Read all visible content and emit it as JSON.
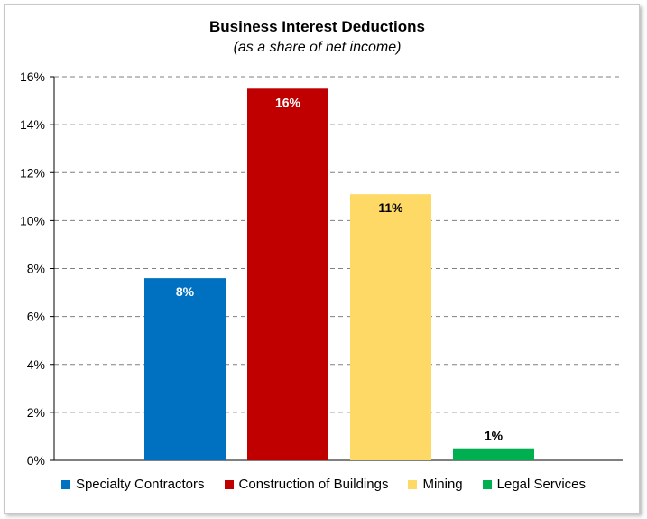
{
  "chart_data": {
    "type": "bar",
    "title": "Business Interest Deductions",
    "subtitle": "(as a share of net income)",
    "xlabel": "",
    "ylabel": "",
    "ylim": [
      0,
      16
    ],
    "yticks": [
      0,
      2,
      4,
      6,
      8,
      10,
      12,
      14,
      16
    ],
    "ytick_labels": [
      "0%",
      "2%",
      "4%",
      "6%",
      "8%",
      "10%",
      "12%",
      "14%",
      "16%"
    ],
    "grid": true,
    "legend_position": "bottom",
    "categories": [
      "Specialty Contractors",
      "Construction of Buildings",
      "Mining",
      "Legal Services"
    ],
    "values": [
      7.6,
      15.5,
      11.1,
      0.5
    ],
    "data_labels": [
      "8%",
      "16%",
      "11%",
      "1%"
    ],
    "colors": [
      "#0070c0",
      "#c00000",
      "#ffd966",
      "#00b050"
    ],
    "label_colors": [
      "#ffffff",
      "#ffffff",
      "#000000",
      "#000000"
    ]
  }
}
